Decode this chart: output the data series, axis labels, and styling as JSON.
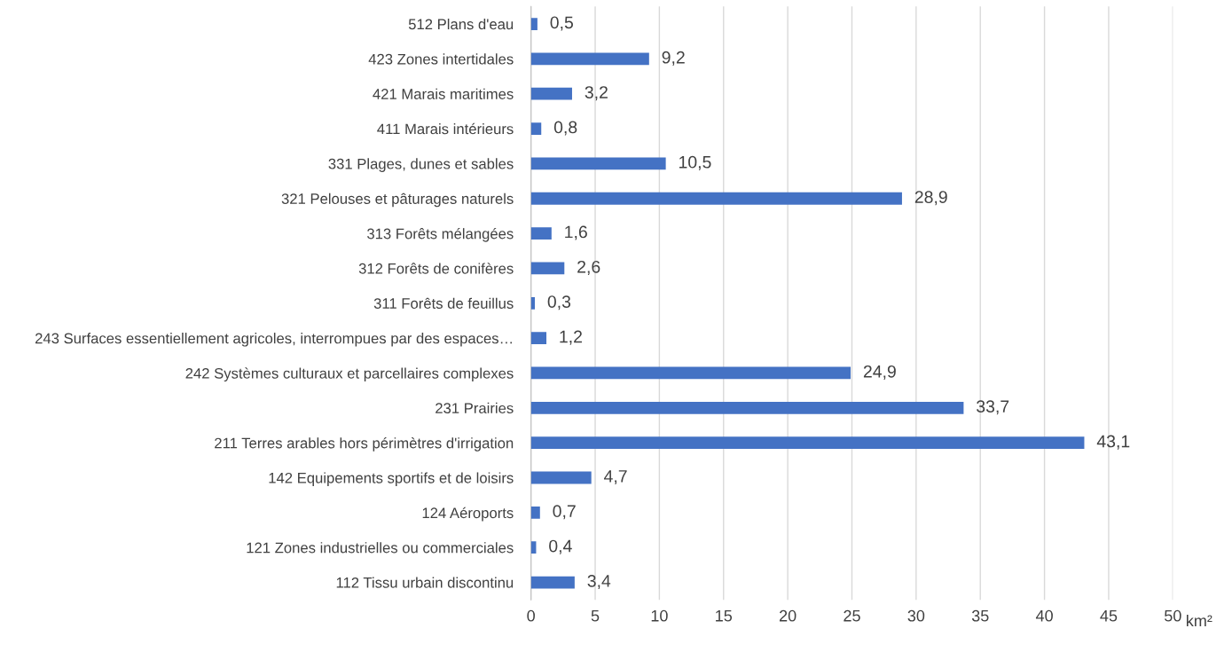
{
  "chart_data": {
    "type": "bar",
    "orientation": "horizontal",
    "xlabel": "km²",
    "categories": [
      "512 Plans d'eau",
      "423 Zones intertidales",
      "421 Marais maritimes",
      "411 Marais intérieurs",
      "331 Plages, dunes et sables",
      "321 Pelouses et pâturages naturels",
      "313 Forêts mélangées",
      "312 Forêts de conifères",
      "311 Forêts de feuillus",
      "243 Surfaces essentiellement agricoles, interrompues par des espaces…",
      "242 Systèmes culturaux et parcellaires complexes",
      "231 Prairies",
      "211 Terres arables hors périmètres d'irrigation",
      "142 Equipements sportifs et de loisirs",
      "124 Aéroports",
      "121 Zones industrielles ou commerciales",
      "112 Tissu urbain discontinu"
    ],
    "values": [
      0.5,
      9.2,
      3.2,
      0.8,
      10.5,
      28.9,
      1.6,
      2.6,
      0.3,
      1.2,
      24.9,
      33.7,
      43.1,
      4.7,
      0.7,
      0.4,
      3.4
    ],
    "value_labels": [
      "0,5",
      "9,2",
      "3,2",
      "0,8",
      "10,5",
      "28,9",
      "1,6",
      "2,6",
      "0,3",
      "1,2",
      "24,9",
      "33,7",
      "43,1",
      "4,7",
      "0,7",
      "0,4",
      "3,4"
    ],
    "color": "#4472c4",
    "xlim": [
      0,
      50
    ],
    "xticks": [
      0,
      5,
      10,
      15,
      20,
      25,
      30,
      35,
      40,
      45,
      50
    ],
    "grid": "x",
    "legend": false
  }
}
